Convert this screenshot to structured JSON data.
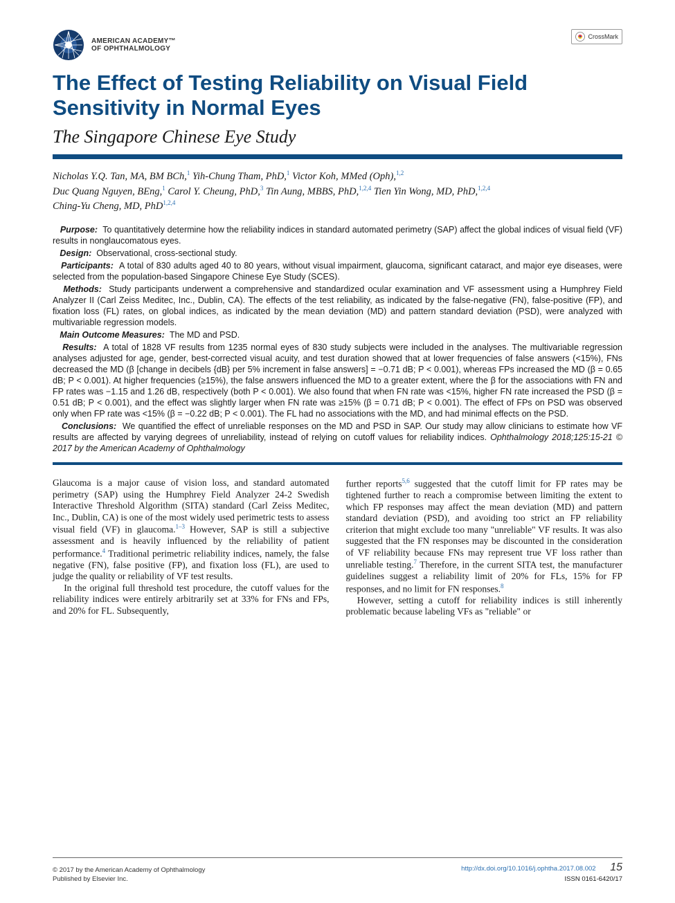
{
  "header": {
    "org_line1": "AMERICAN ACADEMY™",
    "org_line2": "OF OPHTHALMOLOGY",
    "crossmark_label": "CrossMark"
  },
  "title": "The Effect of Testing Reliability on Visual Field Sensitivity in Normal Eyes",
  "subtitle": "The Singapore Chinese Eye Study",
  "colors": {
    "brand_blue": "#0f4c81",
    "link_blue": "#2b6fb0",
    "text": "#1a1a1a",
    "bg": "#ffffff"
  },
  "authors_html": "Nicholas Y.Q. Tan, MA, BM BCh,<sup>1</sup> Yih-Chung Tham, PhD,<sup>1</sup> Victor Koh, MMed (Oph),<sup>1,2</sup><br>Duc Quang Nguyen, BEng,<sup>1</sup> Carol Y. Cheung, PhD,<sup>3</sup> Tin Aung, MBBS, PhD,<sup>1,2,4</sup> Tien Yin Wong, MD, PhD,<sup>1,2,4</sup><br>Ching-Yu Cheng, MD, PhD<sup>1,2,4</sup>",
  "abstract": {
    "purpose": {
      "label": "Purpose:",
      "text": "To quantitatively determine how the reliability indices in standard automated perimetry (SAP) affect the global indices of visual field (VF) results in nonglaucomatous eyes."
    },
    "design": {
      "label": "Design:",
      "text": "Observational, cross-sectional study."
    },
    "participants": {
      "label": "Participants:",
      "text": "A total of 830 adults aged 40 to 80 years, without visual impairment, glaucoma, significant cataract, and major eye diseases, were selected from the population-based Singapore Chinese Eye Study (SCES)."
    },
    "methods": {
      "label": "Methods:",
      "text": "Study participants underwent a comprehensive and standardized ocular examination and VF assessment using a Humphrey Field Analyzer II (Carl Zeiss Meditec, Inc., Dublin, CA). The effects of the test reliability, as indicated by the false-negative (FN), false-positive (FP), and fixation loss (FL) rates, on global indices, as indicated by the mean deviation (MD) and pattern standard deviation (PSD), were analyzed with multivariable regression models."
    },
    "outcome": {
      "label": "Main Outcome Measures:",
      "text": "The MD and PSD."
    },
    "results": {
      "label": "Results:",
      "text": "A total of 1828 VF results from 1235 normal eyes of 830 study subjects were included in the analyses. The multivariable regression analyses adjusted for age, gender, best-corrected visual acuity, and test duration showed that at lower frequencies of false answers (<15%), FNs decreased the MD (β [change in decibels {dB} per 5% increment in false answers] = −0.71 dB; P < 0.001), whereas FPs increased the MD (β = 0.65 dB; P < 0.001). At higher frequencies (≥15%), the false answers influenced the MD to a greater extent, where the β for the associations with FN and FP rates was −1.15 and 1.26 dB, respectively (both P < 0.001). We also found that when FN rate was <15%, higher FN rate increased the PSD (β = 0.51 dB; P < 0.001), and the effect was slightly larger when FN rate was ≥15% (β = 0.71 dB; P < 0.001). The effect of FPs on PSD was observed only when FP rate was <15% (β = −0.22 dB; P < 0.001). The FL had no associations with the MD, and had minimal effects on the PSD."
    },
    "conclusions": {
      "label": "Conclusions:",
      "text": "We quantified the effect of unreliable responses on the MD and PSD in SAP. Our study may allow clinicians to estimate how VF results are affected by varying degrees of unreliability, instead of relying on cutoff values for reliability indices."
    },
    "citation": "Ophthalmology 2018;125:15-21 © 2017 by the American Academy of Ophthalmology"
  },
  "body": {
    "p1": "Glaucoma is a major cause of vision loss, and standard automated perimetry (SAP) using the Humphrey Field Analyzer 24-2 Swedish Interactive Threshold Algorithm (SITA) standard (Carl Zeiss Meditec, Inc., Dublin, CA) is one of the most widely used perimetric tests to assess visual field (VF) in glaucoma.",
    "p1_ref1": "1–3",
    "p1b": " However, SAP is still a subjective assessment and is heavily influenced by the reliability of patient performance.",
    "p1_ref2": "4",
    "p1c": " Traditional perimetric reliability indices, namely, the false negative (FN), false positive (FP), and fixation loss (FL), are used to judge the quality or reliability of VF test results.",
    "p2": "In the original full threshold test procedure, the cutoff values for the reliability indices were entirely arbitrarily set at 33% for FNs and FPs, and 20% for FL. Subsequently,",
    "p3a": "further reports",
    "p3_ref1": "5,6",
    "p3b": " suggested that the cutoff limit for FP rates may be tightened further to reach a compromise between limiting the extent to which FP responses may affect the mean deviation (MD) and pattern standard deviation (PSD), and avoiding too strict an FP reliability criterion that might exclude too many \"unreliable\" VF results. It was also suggested that the FN responses may be discounted in the consideration of VF reliability because FNs may represent true VF loss rather than unreliable testing.",
    "p3_ref2": "7",
    "p3c": " Therefore, in the current SITA test, the manufacturer guidelines suggest a reliability limit of 20% for FLs, 15% for FP responses, and no limit for FN responses.",
    "p3_ref3": "8",
    "p4": "However, setting a cutoff for reliability indices is still inherently problematic because labeling VFs as \"reliable\" or"
  },
  "footer": {
    "copyright": "© 2017 by the American Academy of Ophthalmology",
    "publisher": "Published by Elsevier Inc.",
    "doi": "http://dx.doi.org/10.1016/j.ophtha.2017.08.002",
    "issn": "ISSN 0161-6420/17",
    "page": "15"
  }
}
